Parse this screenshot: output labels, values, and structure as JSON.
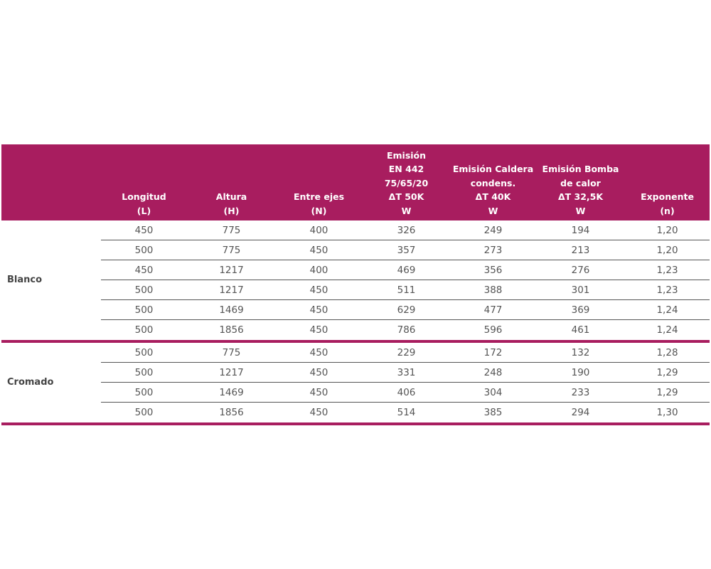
{
  "table": {
    "columns": [
      [
        "Longitud",
        "(L)"
      ],
      [
        "Altura",
        "(H)"
      ],
      [
        "Entre ejes",
        "(N)"
      ],
      [
        "Emisión",
        "EN 442",
        "75/65/20",
        "ΔT 50K",
        "W"
      ],
      [
        "Emisión Caldera",
        "condens.",
        "ΔT 40K",
        "W"
      ],
      [
        "Emisión Bomba",
        "de calor",
        "ΔT 32,5K",
        "W"
      ],
      [
        "Exponente",
        "(n)"
      ]
    ],
    "groups": [
      {
        "label": "Blanco",
        "rows": [
          [
            "450",
            "775",
            "400",
            "326",
            "249",
            "194",
            "1,20"
          ],
          [
            "500",
            "775",
            "450",
            "357",
            "273",
            "213",
            "1,20"
          ],
          [
            "450",
            "1217",
            "400",
            "469",
            "356",
            "276",
            "1,23"
          ],
          [
            "500",
            "1217",
            "450",
            "511",
            "388",
            "301",
            "1,23"
          ],
          [
            "500",
            "1469",
            "450",
            "629",
            "477",
            "369",
            "1,24"
          ],
          [
            "500",
            "1856",
            "450",
            "786",
            "596",
            "461",
            "1,24"
          ]
        ]
      },
      {
        "label": "Cromado",
        "rows": [
          [
            "500",
            "775",
            "450",
            "229",
            "172",
            "132",
            "1,28"
          ],
          [
            "500",
            "1217",
            "450",
            "331",
            "248",
            "190",
            "1,29"
          ],
          [
            "500",
            "1469",
            "450",
            "406",
            "304",
            "233",
            "1,29"
          ],
          [
            "500",
            "1856",
            "450",
            "514",
            "385",
            "294",
            "1,30"
          ]
        ]
      }
    ]
  }
}
